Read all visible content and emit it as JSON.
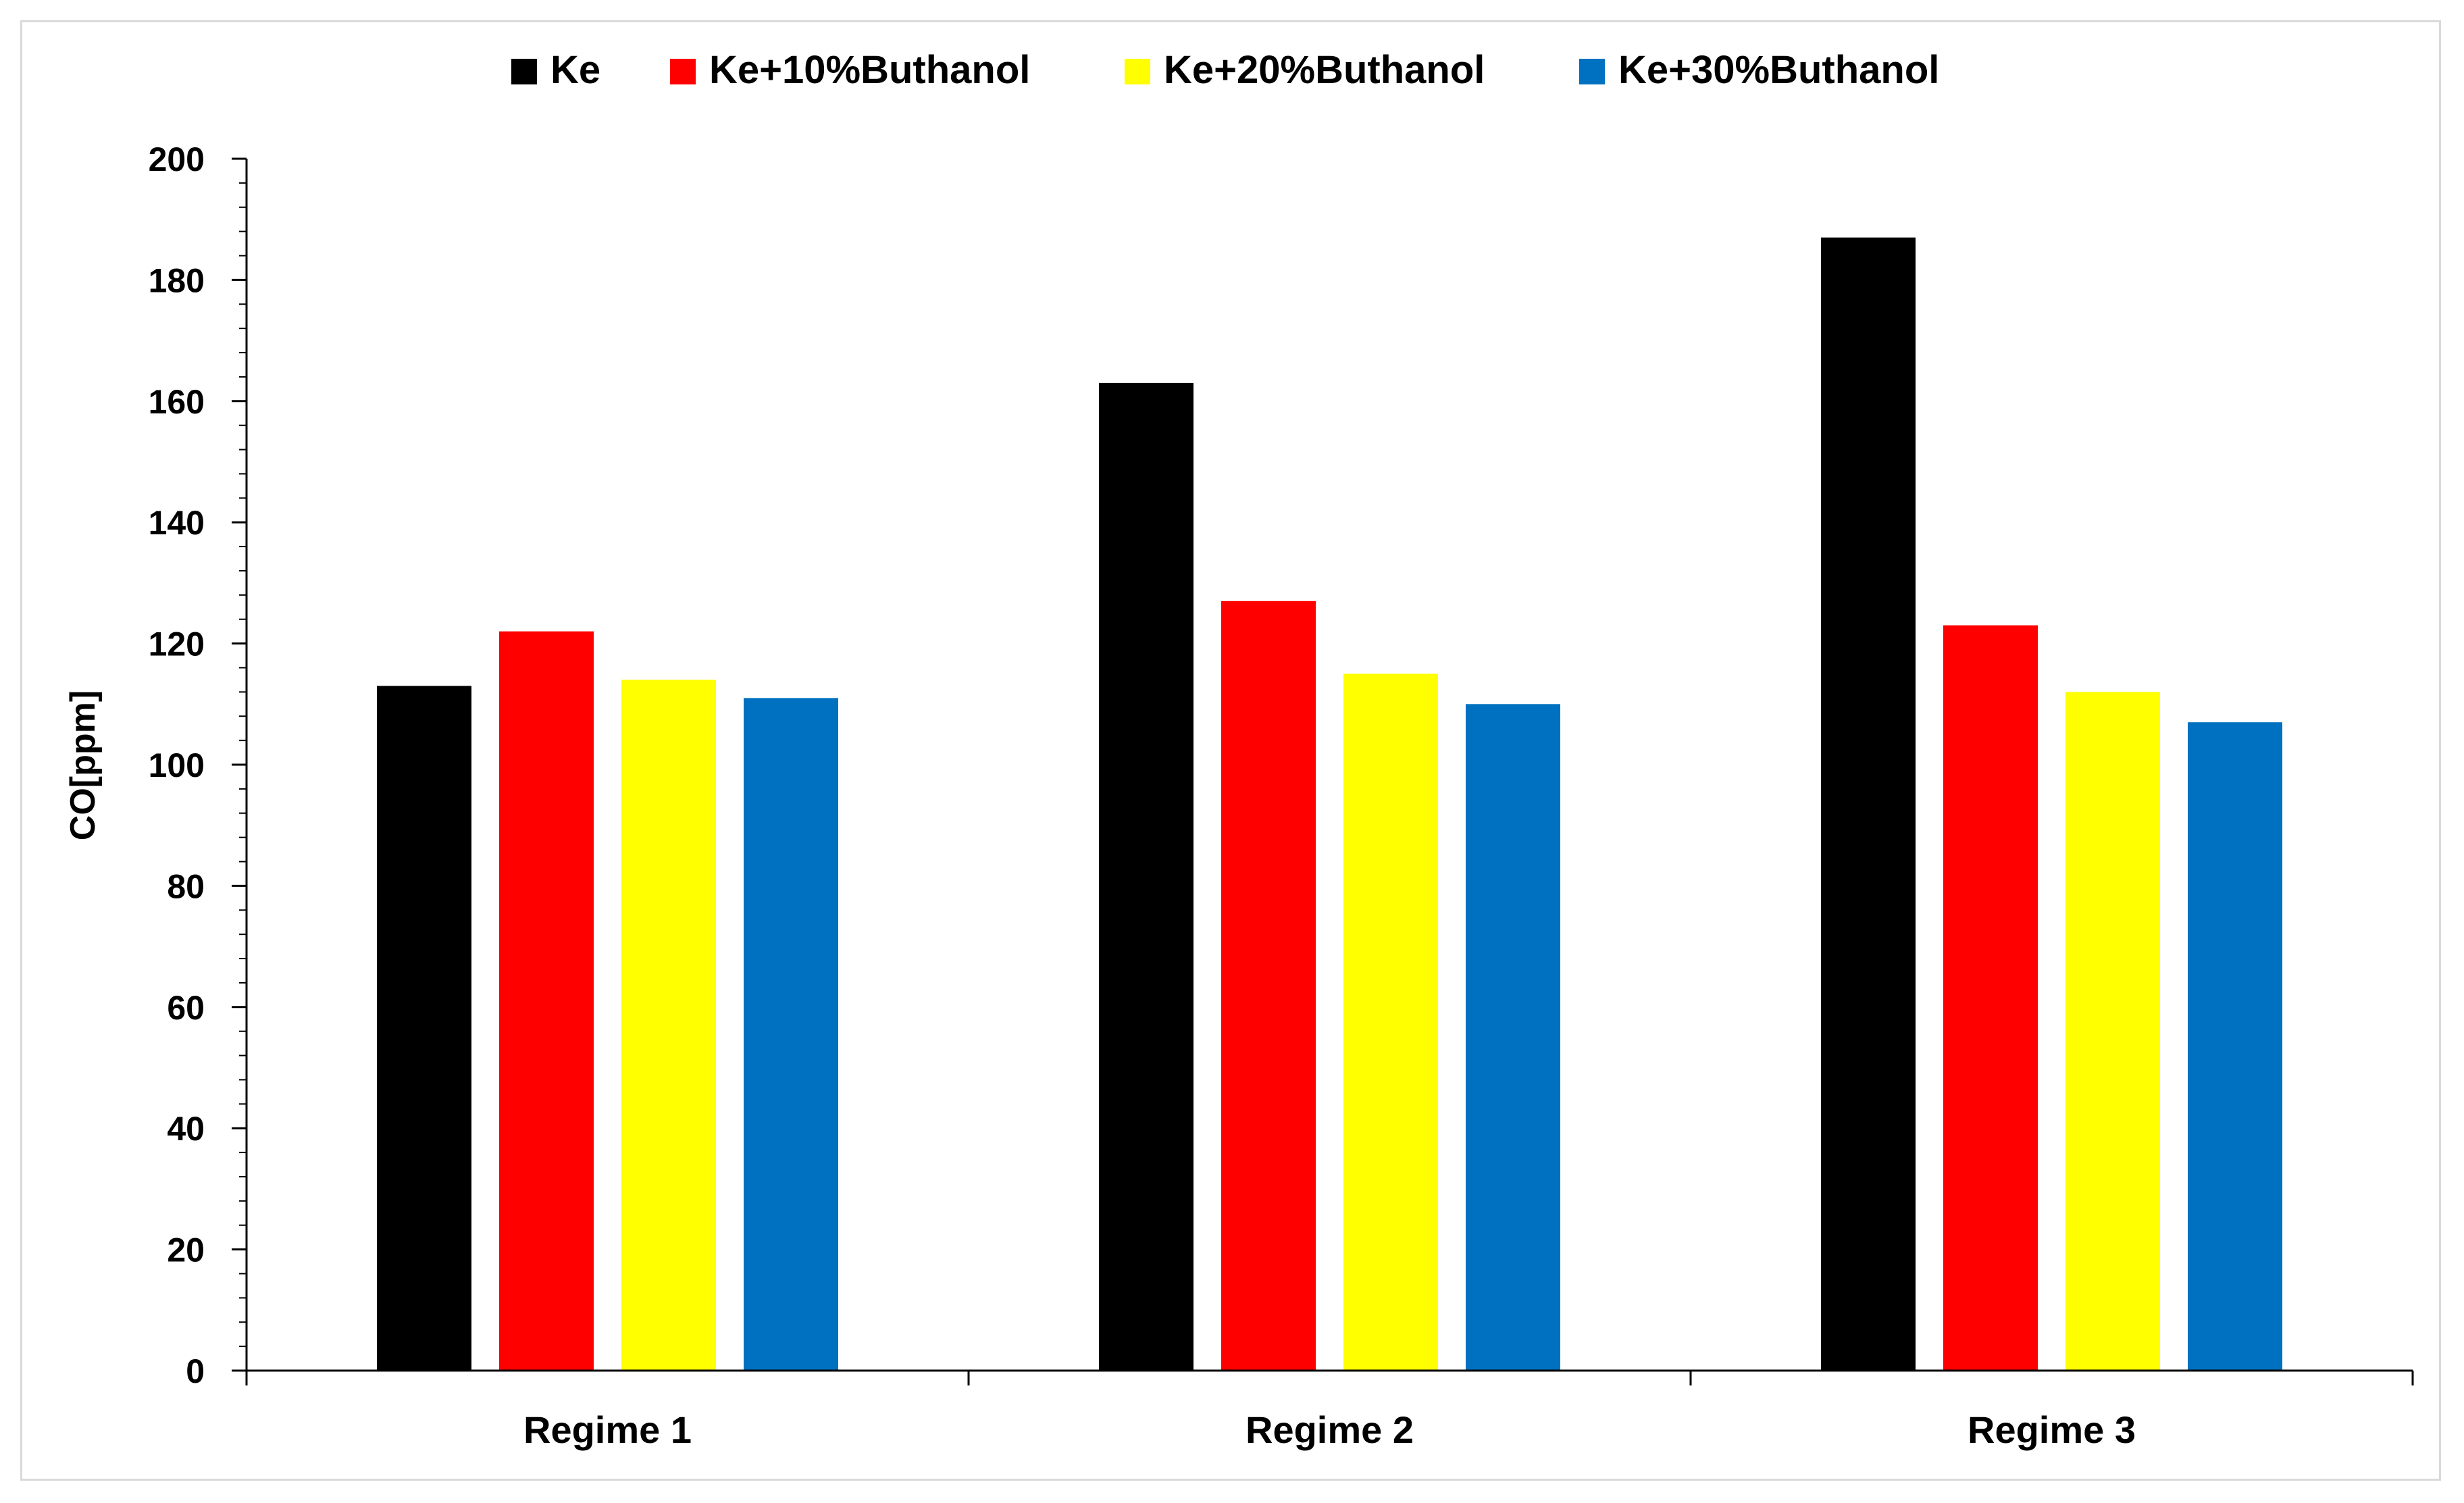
{
  "chart_data": {
    "type": "bar",
    "title": "",
    "xlabel": "",
    "ylabel": "CO[ppm]",
    "ylim": [
      0,
      200
    ],
    "y_ticks": [
      0,
      20,
      40,
      60,
      80,
      100,
      120,
      140,
      160,
      180,
      200
    ],
    "grid": false,
    "legend_position": "top",
    "categories": [
      "Regime 1",
      "Regime 2",
      "Regime 3"
    ],
    "series": [
      {
        "name": "Ke",
        "color": "#000000",
        "values": [
          113,
          163,
          187
        ]
      },
      {
        "name": "Ke+10%Buthanol",
        "color": "#ff0000",
        "values": [
          122,
          127,
          123
        ]
      },
      {
        "name": "Ke+20%Buthanol",
        "color": "#ffff00",
        "values": [
          114,
          115,
          112
        ]
      },
      {
        "name": "Ke+30%Buthanol",
        "color": "#0070c0",
        "values": [
          111,
          110,
          107
        ]
      }
    ]
  }
}
